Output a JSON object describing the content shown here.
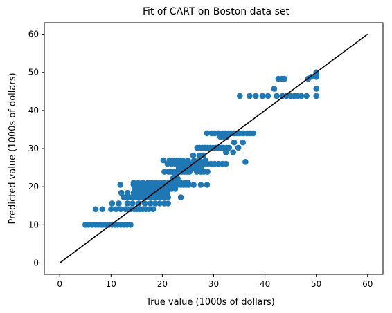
{
  "chart_data": {
    "type": "scatter",
    "title": "Fit of CART on Boston data set",
    "xlabel": "True value (1000s of dollars)",
    "ylabel": "Predicted value (1000s of dollars)",
    "xlim": [
      -3,
      63
    ],
    "ylim": [
      -3,
      63
    ],
    "xticks": [
      "0",
      "10",
      "20",
      "30",
      "40",
      "50",
      "60"
    ],
    "yticks": [
      "0",
      "10",
      "20",
      "30",
      "40",
      "50",
      "60"
    ],
    "grid": false,
    "colors": {
      "points": "#1f77b4",
      "line": "#000000"
    },
    "reference_line": {
      "x": [
        0,
        60
      ],
      "y": [
        0,
        60
      ]
    },
    "points": [
      [
        5.0,
        10.0
      ],
      [
        5.6,
        10.0
      ],
      [
        6.3,
        10.0
      ],
      [
        7.0,
        10.0
      ],
      [
        7.5,
        10.0
      ],
      [
        8.1,
        10.0
      ],
      [
        8.5,
        10.0
      ],
      [
        9.0,
        10.0
      ],
      [
        9.6,
        10.0
      ],
      [
        10.2,
        10.0
      ],
      [
        10.8,
        10.0
      ],
      [
        11.3,
        10.0
      ],
      [
        11.9,
        10.0
      ],
      [
        12.5,
        10.0
      ],
      [
        13.1,
        10.0
      ],
      [
        13.8,
        10.0
      ],
      [
        7.0,
        14.1
      ],
      [
        8.3,
        14.1
      ],
      [
        10.0,
        14.1
      ],
      [
        11.0,
        14.1
      ],
      [
        11.9,
        14.1
      ],
      [
        12.8,
        14.1
      ],
      [
        13.8,
        14.1
      ],
      [
        14.5,
        14.1
      ],
      [
        15.0,
        14.1
      ],
      [
        15.6,
        14.1
      ],
      [
        16.2,
        14.1
      ],
      [
        16.8,
        14.1
      ],
      [
        17.4,
        14.1
      ],
      [
        18.2,
        14.1
      ],
      [
        10.2,
        15.6
      ],
      [
        11.5,
        15.6
      ],
      [
        13.2,
        15.6
      ],
      [
        14.2,
        15.6
      ],
      [
        15.4,
        15.6
      ],
      [
        16.6,
        15.6
      ],
      [
        17.7,
        15.6
      ],
      [
        18.6,
        15.6
      ],
      [
        19.5,
        15.6
      ],
      [
        20.4,
        15.6
      ],
      [
        21.1,
        15.6
      ],
      [
        12.5,
        17.2
      ],
      [
        13.0,
        17.2
      ],
      [
        13.6,
        17.2
      ],
      [
        14.1,
        17.2
      ],
      [
        14.6,
        17.2
      ],
      [
        15.1,
        17.2
      ],
      [
        15.6,
        17.2
      ],
      [
        16.1,
        17.2
      ],
      [
        16.6,
        17.2
      ],
      [
        17.1,
        17.2
      ],
      [
        17.6,
        17.2
      ],
      [
        18.1,
        17.2
      ],
      [
        18.6,
        17.2
      ],
      [
        19.1,
        17.2
      ],
      [
        19.6,
        17.2
      ],
      [
        20.1,
        17.2
      ],
      [
        20.6,
        17.2
      ],
      [
        21.1,
        17.2
      ],
      [
        23.6,
        17.2
      ],
      [
        12.0,
        18.4
      ],
      [
        13.2,
        18.4
      ],
      [
        14.4,
        18.4
      ],
      [
        15.2,
        18.4
      ],
      [
        16.0,
        18.4
      ],
      [
        16.8,
        18.4
      ],
      [
        17.6,
        18.4
      ],
      [
        18.5,
        18.4
      ],
      [
        19.3,
        18.4
      ],
      [
        20.1,
        18.4
      ],
      [
        21.0,
        18.4
      ],
      [
        11.8,
        20.5
      ],
      [
        14.4,
        20.5
      ],
      [
        15.0,
        20.5
      ],
      [
        15.5,
        20.5
      ],
      [
        16.1,
        20.5
      ],
      [
        16.6,
        20.5
      ],
      [
        17.2,
        20.5
      ],
      [
        17.7,
        20.5
      ],
      [
        18.2,
        20.5
      ],
      [
        18.8,
        20.5
      ],
      [
        19.3,
        20.5
      ],
      [
        19.9,
        20.5
      ],
      [
        20.4,
        20.5
      ],
      [
        21.0,
        20.5
      ],
      [
        21.5,
        20.5
      ],
      [
        22.0,
        20.5
      ],
      [
        22.5,
        20.5
      ],
      [
        23.0,
        20.5
      ],
      [
        23.6,
        20.5
      ],
      [
        24.1,
        20.5
      ],
      [
        24.6,
        20.5
      ],
      [
        25.1,
        20.5
      ],
      [
        26.1,
        20.5
      ],
      [
        27.5,
        20.5
      ],
      [
        28.7,
        20.5
      ],
      [
        14.6,
        19.4
      ],
      [
        15.4,
        19.4
      ],
      [
        16.2,
        19.4
      ],
      [
        17.0,
        19.4
      ],
      [
        17.8,
        19.4
      ],
      [
        18.6,
        19.4
      ],
      [
        19.4,
        19.4
      ],
      [
        20.2,
        19.4
      ],
      [
        21.1,
        19.4
      ],
      [
        21.8,
        19.4
      ],
      [
        22.5,
        19.4
      ],
      [
        14.4,
        21.0
      ],
      [
        15.3,
        21.0
      ],
      [
        16.2,
        21.0
      ],
      [
        17.2,
        21.0
      ],
      [
        18.0,
        21.0
      ],
      [
        18.8,
        21.0
      ],
      [
        19.6,
        21.0
      ],
      [
        20.4,
        21.0
      ],
      [
        21.2,
        21.0
      ],
      [
        22.0,
        21.0
      ],
      [
        22.8,
        21.0
      ],
      [
        23.6,
        21.0
      ],
      [
        24.4,
        21.0
      ],
      [
        25.0,
        21.0
      ],
      [
        22.0,
        22.1
      ],
      [
        23.0,
        22.1
      ],
      [
        22.5,
        22.9
      ],
      [
        20.4,
        23.9
      ],
      [
        21.2,
        23.9
      ],
      [
        21.8,
        23.9
      ],
      [
        22.3,
        23.9
      ],
      [
        22.8,
        23.9
      ],
      [
        23.3,
        23.9
      ],
      [
        23.8,
        23.9
      ],
      [
        24.3,
        23.9
      ],
      [
        24.8,
        23.9
      ],
      [
        25.3,
        23.9
      ],
      [
        26.7,
        23.9
      ],
      [
        27.5,
        23.9
      ],
      [
        28.1,
        23.9
      ],
      [
        28.8,
        23.9
      ],
      [
        23.2,
        24.9
      ],
      [
        24.0,
        24.9
      ],
      [
        25.0,
        24.9
      ],
      [
        26.0,
        24.9
      ],
      [
        26.8,
        24.9
      ],
      [
        27.6,
        24.9
      ],
      [
        21.0,
        26.0
      ],
      [
        21.8,
        26.0
      ],
      [
        22.5,
        26.0
      ],
      [
        23.2,
        26.0
      ],
      [
        23.9,
        26.0
      ],
      [
        24.6,
        26.0
      ],
      [
        25.3,
        26.0
      ],
      [
        26.0,
        26.0
      ],
      [
        26.7,
        26.0
      ],
      [
        27.4,
        26.0
      ],
      [
        28.1,
        26.0
      ],
      [
        28.8,
        26.0
      ],
      [
        29.5,
        26.0
      ],
      [
        30.2,
        26.0
      ],
      [
        31.0,
        26.0
      ],
      [
        31.7,
        26.0
      ],
      [
        32.4,
        26.0
      ],
      [
        20.2,
        26.9
      ],
      [
        21.4,
        26.9
      ],
      [
        22.4,
        26.9
      ],
      [
        23.2,
        26.9
      ],
      [
        24.0,
        26.9
      ],
      [
        25.0,
        26.9
      ],
      [
        26.2,
        26.9
      ],
      [
        27.3,
        26.9
      ],
      [
        28.4,
        26.9
      ],
      [
        26.0,
        28.2
      ],
      [
        27.2,
        28.2
      ],
      [
        28.0,
        28.2
      ],
      [
        26.8,
        30.2
      ],
      [
        27.3,
        30.2
      ],
      [
        27.8,
        30.2
      ],
      [
        28.3,
        30.2
      ],
      [
        28.8,
        30.2
      ],
      [
        29.3,
        30.2
      ],
      [
        29.9,
        30.2
      ],
      [
        30.4,
        30.2
      ],
      [
        30.9,
        30.2
      ],
      [
        31.4,
        30.2
      ],
      [
        31.9,
        30.2
      ],
      [
        32.5,
        30.2
      ],
      [
        33.0,
        30.2
      ],
      [
        34.8,
        30.2
      ],
      [
        32.4,
        29.0
      ],
      [
        33.8,
        29.0
      ],
      [
        36.2,
        26.5
      ],
      [
        28.7,
        34.0
      ],
      [
        29.6,
        34.0
      ],
      [
        30.2,
        34.0
      ],
      [
        30.9,
        34.0
      ],
      [
        31.7,
        34.0
      ],
      [
        32.3,
        34.0
      ],
      [
        32.9,
        34.0
      ],
      [
        33.4,
        34.0
      ],
      [
        34.0,
        34.0
      ],
      [
        34.5,
        34.0
      ],
      [
        35.1,
        34.0
      ],
      [
        35.8,
        34.0
      ],
      [
        36.5,
        34.0
      ],
      [
        37.1,
        34.0
      ],
      [
        37.7,
        34.0
      ],
      [
        31.3,
        33.1
      ],
      [
        32.0,
        33.1
      ],
      [
        32.6,
        33.1
      ],
      [
        34.0,
        31.6
      ],
      [
        35.7,
        31.6
      ],
      [
        35.1,
        43.8
      ],
      [
        37.0,
        43.8
      ],
      [
        38.2,
        43.8
      ],
      [
        39.5,
        43.8
      ],
      [
        40.6,
        43.8
      ],
      [
        42.3,
        43.8
      ],
      [
        43.4,
        43.8
      ],
      [
        44.2,
        43.8
      ],
      [
        45.0,
        43.8
      ],
      [
        45.7,
        43.8
      ],
      [
        46.4,
        43.8
      ],
      [
        47.1,
        43.8
      ],
      [
        48.1,
        43.8
      ],
      [
        50.0,
        43.8
      ],
      [
        41.8,
        45.7
      ],
      [
        42.6,
        48.3
      ],
      [
        43.3,
        48.3
      ],
      [
        43.8,
        48.3
      ],
      [
        48.4,
        48.3
      ],
      [
        49.0,
        48.8
      ],
      [
        50.0,
        48.8
      ],
      [
        50.0,
        49.4
      ],
      [
        50.0,
        50.0
      ],
      [
        50.0,
        45.7
      ]
    ]
  }
}
